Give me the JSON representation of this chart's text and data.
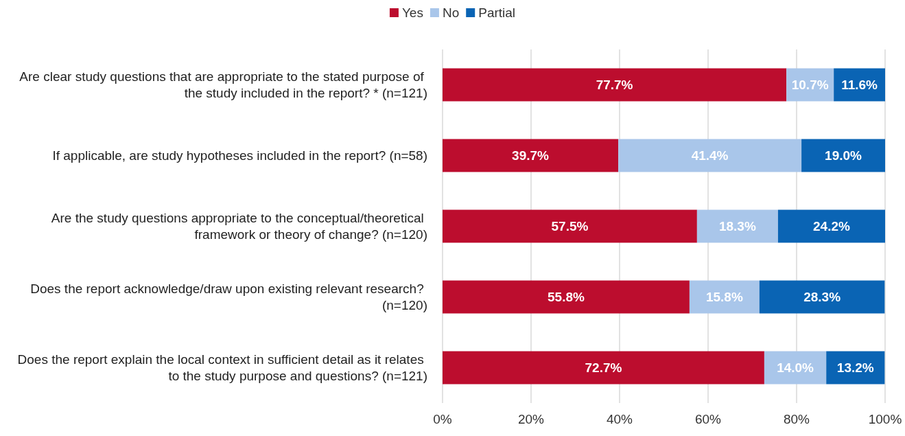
{
  "chart_data": {
    "type": "bar",
    "orientation": "horizontal",
    "stacked": true,
    "categories": [
      "Are clear study questions that are appropriate to the stated purpose of the study included in the report? * (n=121)",
      "If applicable, are study hypotheses included in the report? (n=58)",
      "Are the study questions appropriate to the conceptual/theoretical framework or theory of change? (n=120)",
      "Does the report acknowledge/draw upon existing relevant research? (n=120)",
      "Does the report explain the local context in sufficient detail as it relates to the study purpose and questions? (n=121)"
    ],
    "series": [
      {
        "name": "Yes",
        "color": "#bc0d2e",
        "values": [
          77.7,
          39.7,
          57.5,
          55.8,
          72.7
        ],
        "value_labels": [
          "77.7%",
          "39.7%",
          "57.5%",
          "55.8%",
          "72.7%"
        ]
      },
      {
        "name": "No",
        "color": "#a9c6ea",
        "values": [
          10.7,
          41.4,
          18.3,
          15.8,
          14.0
        ],
        "value_labels": [
          "10.7%",
          "41.4%",
          "18.3%",
          "15.8%",
          "14.0%"
        ]
      },
      {
        "name": "Partial",
        "color": "#0a64b4",
        "values": [
          11.6,
          19.0,
          24.2,
          28.3,
          13.2
        ],
        "value_labels": [
          "11.6%",
          "19.0%",
          "24.2%",
          "28.3%",
          "13.2%"
        ]
      }
    ],
    "xlim": [
      0,
      100
    ],
    "xticks": [
      {
        "value": 0,
        "label": "0%"
      },
      {
        "value": 20,
        "label": "20%"
      },
      {
        "value": 40,
        "label": "40%"
      },
      {
        "value": 60,
        "label": "60%"
      },
      {
        "value": 80,
        "label": "80%"
      },
      {
        "value": 100,
        "label": "100%"
      }
    ],
    "grid": "x",
    "legend": "top"
  }
}
